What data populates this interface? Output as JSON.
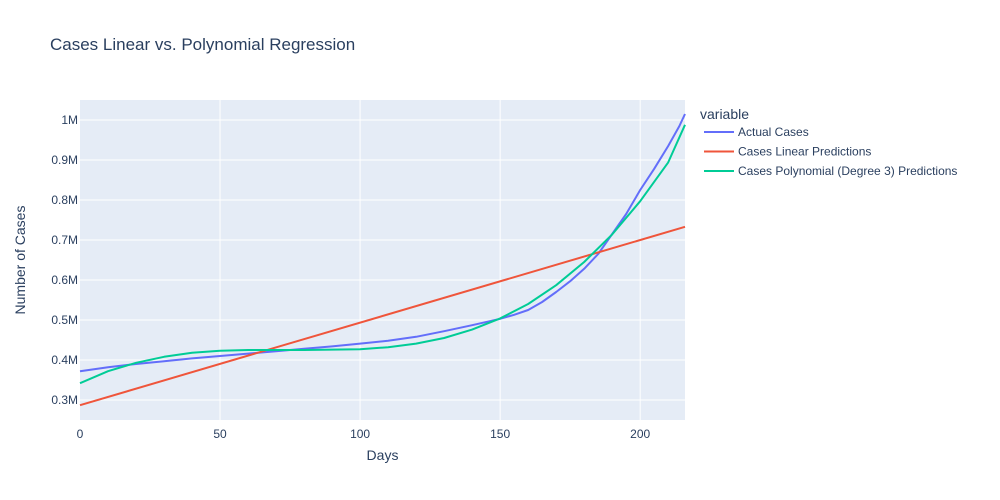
{
  "chart_data": {
    "type": "line",
    "title": "Cases Linear vs. Polynomial Regression",
    "xlabel": "Days",
    "ylabel": "Number of Cases",
    "xlim": [
      0,
      216
    ],
    "ylim": [
      250000,
      1050000
    ],
    "x_ticks": [
      0,
      50,
      100,
      150,
      200
    ],
    "y_ticks": [
      300000,
      400000,
      500000,
      600000,
      700000,
      800000,
      900000,
      1000000
    ],
    "y_tick_labels": [
      "0.3M",
      "0.4M",
      "0.5M",
      "0.6M",
      "0.7M",
      "0.8M",
      "0.9M",
      "1M"
    ],
    "grid": true,
    "legend_title": "variable",
    "legend_position": "right",
    "series": [
      {
        "name": "Actual Cases",
        "color": "#636efa",
        "x": [
          0,
          10,
          20,
          30,
          40,
          50,
          60,
          70,
          80,
          90,
          100,
          110,
          120,
          130,
          140,
          150,
          155,
          160,
          165,
          170,
          175,
          180,
          185,
          190,
          195,
          200,
          205,
          210,
          214,
          216
        ],
        "y": [
          372000,
          382000,
          390000,
          397000,
          404000,
          410000,
          416000,
          422000,
          428000,
          434000,
          441000,
          448000,
          458000,
          472000,
          487000,
          503000,
          513000,
          525000,
          545000,
          570000,
          597000,
          628000,
          665000,
          715000,
          765000,
          825000,
          878000,
          935000,
          985000,
          1015000
        ]
      },
      {
        "name": "Cases Linear Predictions",
        "color": "#ef553b",
        "x": [
          0,
          216
        ],
        "y": [
          287000,
          733000
        ]
      },
      {
        "name": "Cases Polynomial (Degree 3) Predictions",
        "color": "#00cc96",
        "x": [
          0,
          10,
          20,
          30,
          40,
          50,
          60,
          70,
          80,
          90,
          100,
          110,
          120,
          130,
          140,
          150,
          160,
          170,
          180,
          190,
          200,
          210,
          216
        ],
        "y": [
          342000,
          372000,
          393000,
          408000,
          418000,
          423000,
          425000,
          425000,
          425000,
          426000,
          427000,
          432000,
          441000,
          455000,
          476000,
          504000,
          540000,
          587000,
          645000,
          714000,
          797000,
          894000,
          988000
        ]
      }
    ]
  }
}
